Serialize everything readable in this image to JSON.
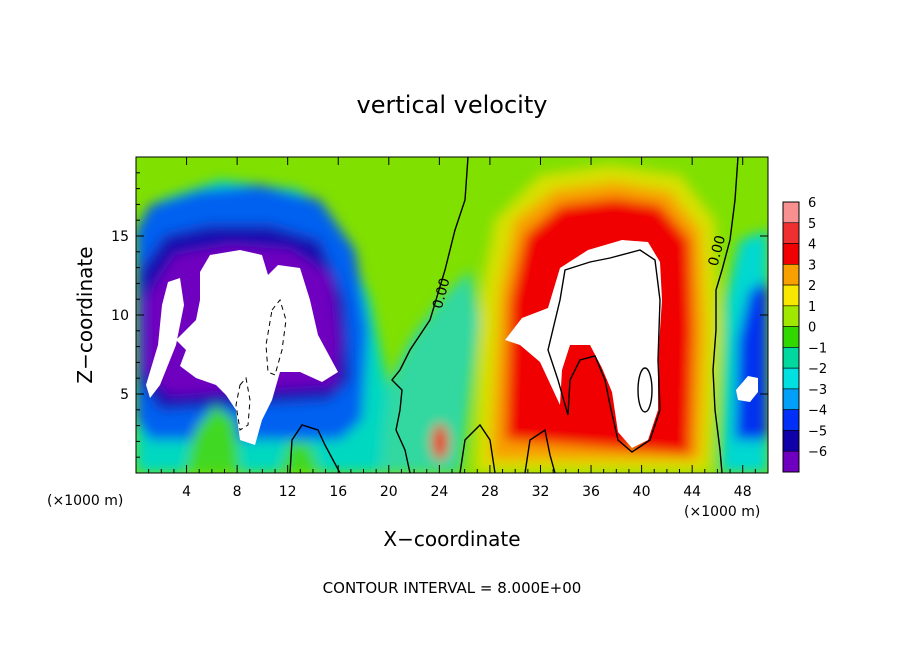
{
  "chart_data": {
    "type": "heatmap",
    "title": "vertical velocity",
    "xlabel": "X−coordinate",
    "ylabel": "Z−coordinate",
    "x_unit_left": "(×1000 m)",
    "x_unit_right": "(×1000 m)",
    "footer": "CONTOUR INTERVAL = 8.000E+00",
    "xlim": [
      0,
      50
    ],
    "ylim": [
      0,
      20
    ],
    "x_ticks": [
      {
        "value": 4,
        "label": "4"
      },
      {
        "value": 8,
        "label": "8"
      },
      {
        "value": 12,
        "label": "12"
      },
      {
        "value": 16,
        "label": "16"
      },
      {
        "value": 20,
        "label": "20"
      },
      {
        "value": 24,
        "label": "24"
      },
      {
        "value": 28,
        "label": "28"
      },
      {
        "value": 32,
        "label": "32"
      },
      {
        "value": 36,
        "label": "36"
      },
      {
        "value": 40,
        "label": "40"
      },
      {
        "value": 44,
        "label": "44"
      },
      {
        "value": 48,
        "label": "48"
      }
    ],
    "y_ticks": [
      {
        "value": 5,
        "label": "5"
      },
      {
        "value": 10,
        "label": "10"
      },
      {
        "value": 15,
        "label": "15"
      }
    ],
    "colorbar": {
      "levels": [
        {
          "value": 6,
          "label": "6",
          "color": "#f89090"
        },
        {
          "value": 5,
          "label": "5",
          "color": "#f03030"
        },
        {
          "value": 4,
          "label": "4",
          "color": "#f00000"
        },
        {
          "value": 3,
          "label": "3",
          "color": "#f8a000"
        },
        {
          "value": 2,
          "label": "2",
          "color": "#f8e800"
        },
        {
          "value": 1,
          "label": "1",
          "color": "#a0e800"
        },
        {
          "value": 0,
          "label": "0",
          "color": "#30d800"
        },
        {
          "value": -1,
          "label": "−1",
          "color": "#00d8a0"
        },
        {
          "value": -2,
          "label": "−2",
          "color": "#00e0e0"
        },
        {
          "value": -3,
          "label": "−3",
          "color": "#00a0f8"
        },
        {
          "value": -4,
          "label": "−4",
          "color": "#0030f8"
        },
        {
          "value": -5,
          "label": "−5",
          "color": "#1000a8"
        },
        {
          "value": -6,
          "label": "−6",
          "color": "#7000c0"
        }
      ]
    },
    "contour_labels": [
      {
        "text": "0.00",
        "x": 24.5,
        "y": 11.3
      },
      {
        "text": "0.00",
        "x": 46.3,
        "y": 14.0
      }
    ],
    "features": [
      {
        "kind": "updraft",
        "x": 36,
        "y": 10,
        "level": 6
      },
      {
        "kind": "downdraft",
        "x": 10,
        "y": 10,
        "level": -6
      },
      {
        "kind": "downdraft",
        "x": 3,
        "y": 10,
        "level": -6
      },
      {
        "kind": "downdraft",
        "x": 48.5,
        "y": 5.5,
        "level": -6
      }
    ]
  }
}
